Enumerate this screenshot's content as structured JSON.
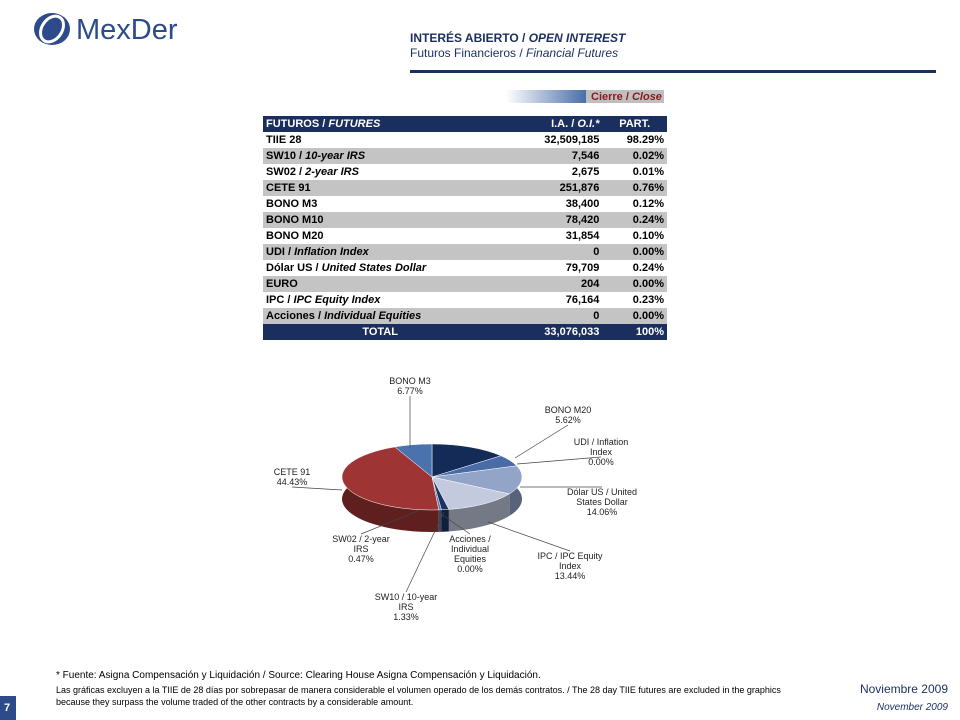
{
  "header": {
    "logo": "MexDer",
    "title": "INTERÉS ABIERTO / OPEN INTEREST",
    "subtitle": "Futuros Financieros / Financial Futures"
  },
  "legend": "Cierre / Close",
  "table": {
    "columns": [
      "FUTUROS / FUTURES",
      "I.A. / O.I.*",
      "PART."
    ],
    "rows": [
      [
        "TIIE 28",
        "32,509,185",
        "98.29%"
      ],
      [
        "SW10 / 10-year IRS",
        "7,546",
        "0.02%"
      ],
      [
        "SW02 / 2-year IRS",
        "2,675",
        "0.01%"
      ],
      [
        "CETE 91",
        "251,876",
        "0.76%"
      ],
      [
        "BONO M3",
        "38,400",
        "0.12%"
      ],
      [
        "BONO M10",
        "78,420",
        "0.24%"
      ],
      [
        "BONO M20",
        "31,854",
        "0.10%"
      ],
      [
        "UDI / Inflation Index",
        "0",
        "0.00%"
      ],
      [
        "Dólar US / United States Dollar",
        "79,709",
        "0.24%"
      ],
      [
        "EURO",
        "204",
        "0.00%"
      ],
      [
        "IPC / IPC Equity Index",
        "76,164",
        "0.23%"
      ],
      [
        "Acciones / Individual Equities",
        "0",
        "0.00%"
      ]
    ],
    "total": [
      "TOTAL",
      "33,076,033",
      "100%"
    ]
  },
  "chart_data": {
    "type": "pie",
    "categories": [
      null,
      "BONO M20",
      "UDI / Inflation Index",
      "Dólar US / United States Dollar",
      "IPC / IPC Equity Index",
      "Acciones / Individual Equities",
      "SW10 / 10-year IRS",
      "SW02 / 2-year IRS",
      "CETE 91",
      "BONO M3"
    ],
    "values": [
      13.88,
      5.62,
      0,
      14.06,
      13.44,
      0,
      1.33,
      0.47,
      44.43,
      6.77
    ],
    "value_labels": [
      null,
      "5.62%",
      "0.00%",
      "14.06%",
      "13.44%",
      "0.00%",
      "1.33%",
      "0.47%",
      "44.43%",
      "6.77%"
    ],
    "colors": [
      "#142a57",
      "#4a6aa8",
      "#6f86b8",
      "#93a4c9",
      "#c3cadd",
      "#9aa6c0",
      "#1b3363",
      "#5d77a8",
      "#9e3434",
      "#4a72ad"
    ]
  },
  "footer": {
    "source": "* Fuente: Asigna Compensación y Liquidación / Source: Clearing House Asigna Compensación y Liquidación.",
    "note": "Las gráficas excluyen a la TIIE de 28 días por sobrepasar de manera considerable el volumen operado de los demás contratos. / The 28 day TIIE futures are excluded in the graphics because they surpass the volume traded of the other contracts by a considerable amount.",
    "date_es": "Noviembre 2009",
    "date_en": "November 2009",
    "page": "7"
  }
}
